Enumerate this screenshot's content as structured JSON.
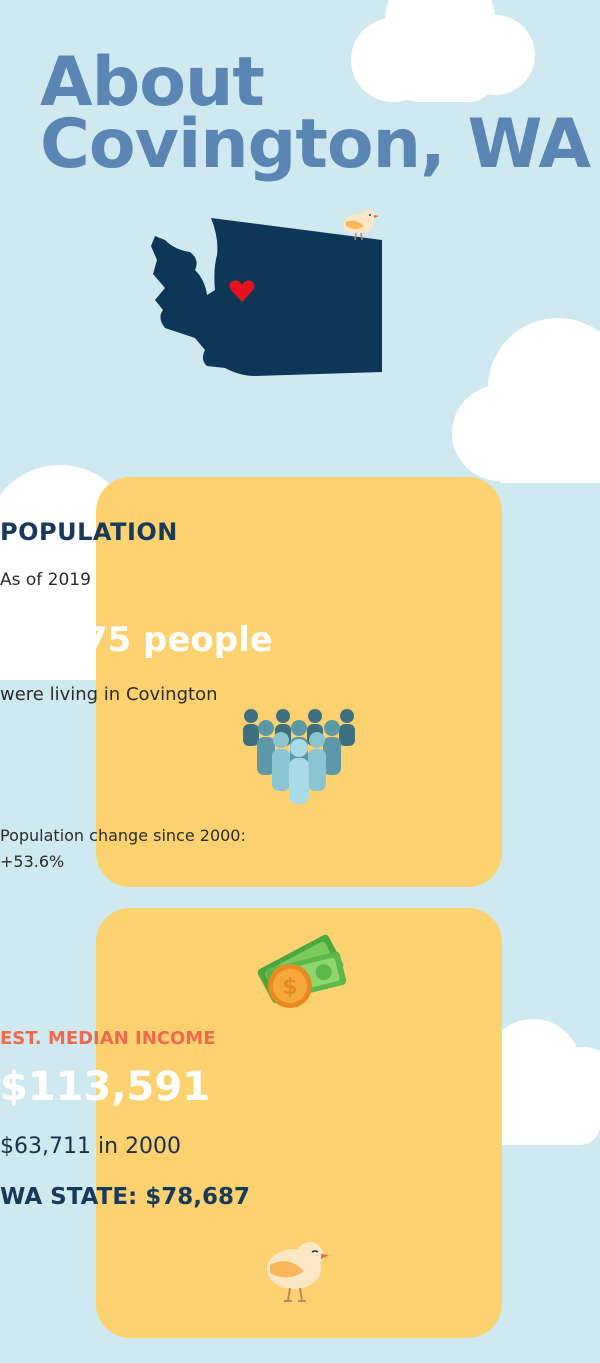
{
  "title": {
    "line1": "About",
    "line2": "Covington, WA"
  },
  "population": {
    "heading": "POPULATION",
    "as_of": "As of 2019",
    "count": "21,175 people",
    "subtitle": "were living in Covington",
    "change_label": "Population change since 2000:",
    "change_value": "+53.6%"
  },
  "income": {
    "label": "EST. MEDIAN INCOME",
    "value": "$113,591",
    "value_2000": "$63,711 in 2000",
    "state": "WA STATE: $78,687"
  },
  "icons": {
    "map": "washington-state-map-icon",
    "heart": "heart-icon",
    "people": "people-group-icon",
    "money": "money-coin-icon",
    "bird": "bird-icon"
  },
  "colors": {
    "background": "#cfe9f1",
    "title": "#5b86b3",
    "card": "#fcd271",
    "map": "#0e3657",
    "heart": "#e8121f",
    "income_label": "#f0694b"
  }
}
